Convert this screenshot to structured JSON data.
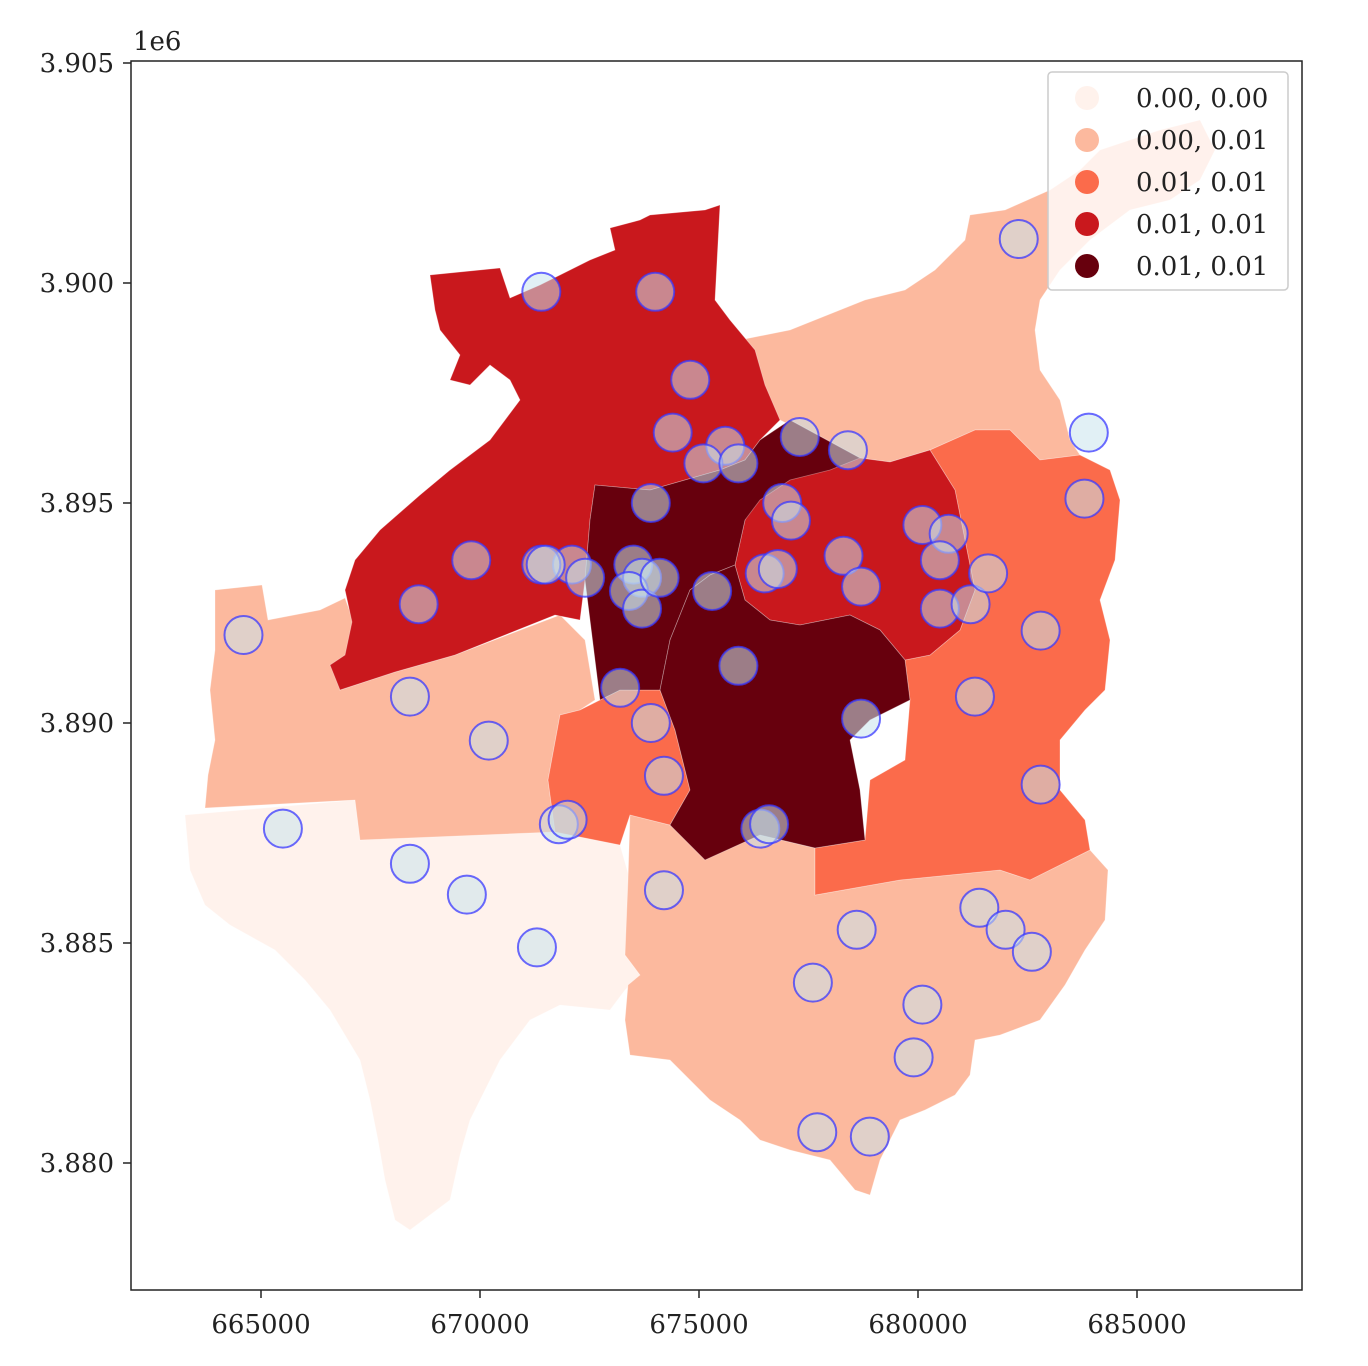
{
  "axes": {
    "y_offset_label": "1e6",
    "x_ticks": [
      "665000",
      "670000",
      "675000",
      "680000",
      "685000"
    ],
    "y_ticks": [
      "3.880",
      "3.885",
      "3.890",
      "3.895",
      "3.900",
      "3.905"
    ]
  },
  "colors": {
    "class0": "#fff2ec",
    "class1": "#fcb99e",
    "class2": "#fb6b4b",
    "class3": "#c9181d",
    "class4": "#67000d",
    "point_fill": "#c8e3ec",
    "point_stroke": "#3a3aff"
  },
  "legend": {
    "placement": "top-right",
    "items": [
      {
        "label": "0.00, 0.00",
        "color": "#fff2ec"
      },
      {
        "label": "0.00, 0.01",
        "color": "#fcb99e"
      },
      {
        "label": "0.01, 0.01",
        "color": "#fb6b4b"
      },
      {
        "label": "0.01, 0.01",
        "color": "#c9181d"
      },
      {
        "label": "0.01, 0.01",
        "color": "#67000d"
      }
    ]
  },
  "points": [
    [
      674800,
      3897800
    ],
    [
      674400,
      3896600
    ],
    [
      675600,
      3896300
    ],
    [
      675100,
      3895900
    ],
    [
      675900,
      3895900
    ],
    [
      677300,
      3896500
    ],
    [
      678400,
      3896200
    ],
    [
      676900,
      3895000
    ],
    [
      677100,
      3894600
    ],
    [
      678300,
      3893800
    ],
    [
      680100,
      3894500
    ],
    [
      680700,
      3894300
    ],
    [
      680500,
      3893700
    ],
    [
      683800,
      3895100
    ],
    [
      683900,
      3896600
    ],
    [
      673900,
      3895000
    ],
    [
      672100,
      3893600
    ],
    [
      673500,
      3893600
    ],
    [
      673700,
      3893300
    ],
    [
      673400,
      3893000
    ],
    [
      673700,
      3892600
    ],
    [
      674100,
      3893300
    ],
    [
      671400,
      3893600
    ],
    [
      671500,
      3893600
    ],
    [
      672400,
      3893300
    ],
    [
      669800,
      3893700
    ],
    [
      668600,
      3892700
    ],
    [
      675300,
      3893000
    ],
    [
      676500,
      3893400
    ],
    [
      676800,
      3893500
    ],
    [
      678700,
      3893100
    ],
    [
      680500,
      3892600
    ],
    [
      681200,
      3892700
    ],
    [
      681600,
      3893400
    ],
    [
      682800,
      3892100
    ],
    [
      673200,
      3890800
    ],
    [
      673900,
      3890000
    ],
    [
      674200,
      3888800
    ],
    [
      675900,
      3891300
    ],
    [
      678700,
      3890100
    ],
    [
      681300,
      3890600
    ],
    [
      682800,
      3888600
    ],
    [
      664600,
      3892000
    ],
    [
      668400,
      3890600
    ],
    [
      670200,
      3889600
    ],
    [
      665500,
      3887600
    ],
    [
      668400,
      3886800
    ],
    [
      669700,
      3886100
    ],
    [
      671800,
      3887700
    ],
    [
      672000,
      3887800
    ],
    [
      671300,
      3884900
    ],
    [
      674200,
      3886200
    ],
    [
      676400,
      3887600
    ],
    [
      676600,
      3887700
    ],
    [
      677600,
      3884100
    ],
    [
      678600,
      3885300
    ],
    [
      681400,
      3885800
    ],
    [
      682000,
      3885300
    ],
    [
      682600,
      3884800
    ],
    [
      680100,
      3883600
    ],
    [
      679900,
      3882400
    ],
    [
      677700,
      3880700
    ],
    [
      678900,
      3880600
    ],
    [
      682300,
      3901000
    ],
    [
      671400,
      3899800
    ],
    [
      674000,
      3899800
    ]
  ]
}
